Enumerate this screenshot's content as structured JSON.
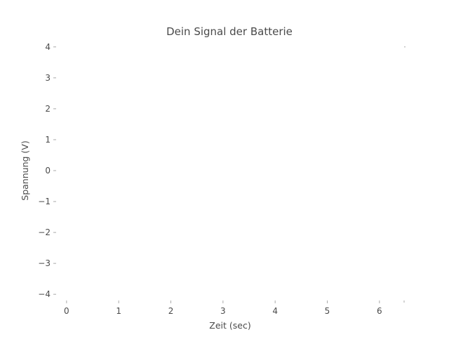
{
  "chart_data": {
    "type": "line",
    "title": "Dein Signal der Batterie",
    "xlabel": "Zeit (sec)",
    "ylabel": "Spannung (V)",
    "xlim": [
      -0.2,
      6.5
    ],
    "ylim": [
      -4.2,
      4.2
    ],
    "x_ticks": [
      0,
      1,
      2,
      3,
      4,
      5,
      6
    ],
    "x_tick_labels": [
      "0",
      "1",
      "2",
      "3",
      "4",
      "5",
      "6"
    ],
    "y_ticks": [
      4,
      3,
      2,
      1,
      0,
      -1,
      -2,
      -3,
      -4
    ],
    "y_tick_labels": [
      "4",
      "3",
      "2",
      "1",
      "0",
      "−1",
      "−2",
      "−3",
      "−4"
    ],
    "grid": false,
    "series": [
      {
        "x": [],
        "y": []
      }
    ]
  }
}
